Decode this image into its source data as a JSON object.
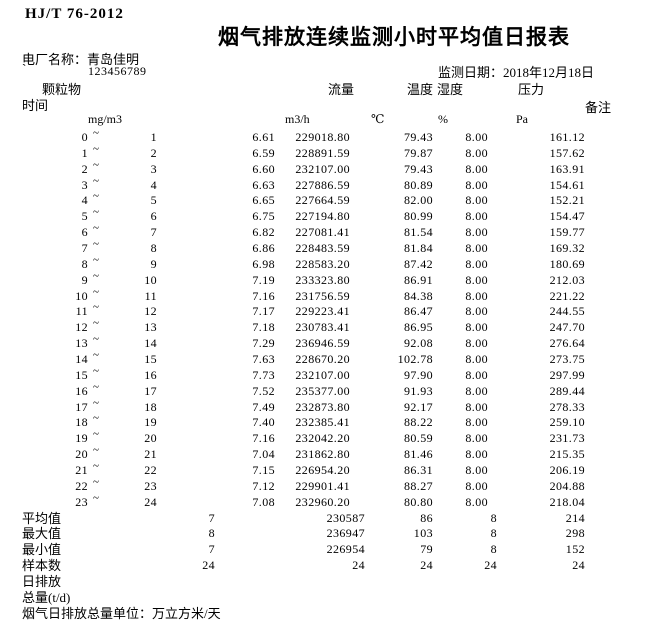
{
  "meta": {
    "standard_code": "HJ/T 76-2012",
    "title": "烟气排放连续监测小时平均值日报表",
    "plant_label": "电厂名称：",
    "plant_name": "青岛佳明",
    "tick_mark": "`",
    "plant_code": "123456789",
    "date_label": "监测日期：",
    "date_value": "2018年12月18日"
  },
  "columns": {
    "time": "时间",
    "pm": "颗粒物",
    "flow": "流量",
    "temperature": "温度",
    "humidity": "湿度",
    "pressure": "压力",
    "remark": "备注",
    "units": {
      "pm": "mg/m3",
      "flow": "m3/h",
      "temperature": "℃",
      "humidity": "%",
      "pressure": "Pa"
    }
  },
  "time_separator": "~",
  "rows": [
    {
      "from": "0",
      "to": "1",
      "pm": "6.61",
      "flow": "229018.80",
      "temp": "79.43",
      "hum": "8.00",
      "press": "161.12"
    },
    {
      "from": "1",
      "to": "2",
      "pm": "6.59",
      "flow": "228891.59",
      "temp": "79.87",
      "hum": "8.00",
      "press": "157.62"
    },
    {
      "from": "2",
      "to": "3",
      "pm": "6.60",
      "flow": "232107.00",
      "temp": "79.43",
      "hum": "8.00",
      "press": "163.91"
    },
    {
      "from": "3",
      "to": "4",
      "pm": "6.63",
      "flow": "227886.59",
      "temp": "80.89",
      "hum": "8.00",
      "press": "154.61"
    },
    {
      "from": "4",
      "to": "5",
      "pm": "6.65",
      "flow": "227664.59",
      "temp": "82.00",
      "hum": "8.00",
      "press": "152.21"
    },
    {
      "from": "5",
      "to": "6",
      "pm": "6.75",
      "flow": "227194.80",
      "temp": "80.99",
      "hum": "8.00",
      "press": "154.47"
    },
    {
      "from": "6",
      "to": "7",
      "pm": "6.82",
      "flow": "227081.41",
      "temp": "81.54",
      "hum": "8.00",
      "press": "159.77"
    },
    {
      "from": "7",
      "to": "8",
      "pm": "6.86",
      "flow": "228483.59",
      "temp": "81.84",
      "hum": "8.00",
      "press": "169.32"
    },
    {
      "from": "8",
      "to": "9",
      "pm": "6.98",
      "flow": "228583.20",
      "temp": "87.42",
      "hum": "8.00",
      "press": "180.69"
    },
    {
      "from": "9",
      "to": "10",
      "pm": "7.19",
      "flow": "233323.80",
      "temp": "86.91",
      "hum": "8.00",
      "press": "212.03"
    },
    {
      "from": "10",
      "to": "11",
      "pm": "7.16",
      "flow": "231756.59",
      "temp": "84.38",
      "hum": "8.00",
      "press": "221.22"
    },
    {
      "from": "11",
      "to": "12",
      "pm": "7.17",
      "flow": "229223.41",
      "temp": "86.47",
      "hum": "8.00",
      "press": "244.55"
    },
    {
      "from": "12",
      "to": "13",
      "pm": "7.18",
      "flow": "230783.41",
      "temp": "86.95",
      "hum": "8.00",
      "press": "247.70"
    },
    {
      "from": "13",
      "to": "14",
      "pm": "7.29",
      "flow": "236946.59",
      "temp": "92.08",
      "hum": "8.00",
      "press": "276.64"
    },
    {
      "from": "14",
      "to": "15",
      "pm": "7.63",
      "flow": "228670.20",
      "temp": "102.78",
      "hum": "8.00",
      "press": "273.75"
    },
    {
      "from": "15",
      "to": "16",
      "pm": "7.73",
      "flow": "232107.00",
      "temp": "97.90",
      "hum": "8.00",
      "press": "297.99"
    },
    {
      "from": "16",
      "to": "17",
      "pm": "7.52",
      "flow": "235377.00",
      "temp": "91.93",
      "hum": "8.00",
      "press": "289.44"
    },
    {
      "from": "17",
      "to": "18",
      "pm": "7.49",
      "flow": "232873.80",
      "temp": "92.17",
      "hum": "8.00",
      "press": "278.33"
    },
    {
      "from": "18",
      "to": "19",
      "pm": "7.40",
      "flow": "232385.41",
      "temp": "88.22",
      "hum": "8.00",
      "press": "259.10"
    },
    {
      "from": "19",
      "to": "20",
      "pm": "7.16",
      "flow": "232042.20",
      "temp": "80.59",
      "hum": "8.00",
      "press": "231.73"
    },
    {
      "from": "20",
      "to": "21",
      "pm": "7.04",
      "flow": "231862.80",
      "temp": "81.46",
      "hum": "8.00",
      "press": "215.35"
    },
    {
      "from": "21",
      "to": "22",
      "pm": "7.15",
      "flow": "226954.20",
      "temp": "86.31",
      "hum": "8.00",
      "press": "206.19"
    },
    {
      "from": "22",
      "to": "23",
      "pm": "7.12",
      "flow": "229901.41",
      "temp": "88.27",
      "hum": "8.00",
      "press": "204.88"
    },
    {
      "from": "23",
      "to": "24",
      "pm": "7.08",
      "flow": "232960.20",
      "temp": "80.80",
      "hum": "8.00",
      "press": "218.04"
    }
  ],
  "summary": [
    {
      "label": "平均值",
      "pm": "7",
      "flow": "230587",
      "temp": "86",
      "hum": "8",
      "press": "214"
    },
    {
      "label": "最大值",
      "pm": "8",
      "flow": "236947",
      "temp": "103",
      "hum": "8",
      "press": "298"
    },
    {
      "label": "最小值",
      "pm": "7",
      "flow": "226954",
      "temp": "79",
      "hum": "8",
      "press": "152"
    },
    {
      "label": "样本数",
      "pm": "24",
      "flow": "24",
      "temp": "24",
      "hum": "24",
      "press": "24"
    },
    {
      "label": "日排放",
      "pm": "",
      "flow": "",
      "temp": "",
      "hum": "",
      "press": ""
    },
    {
      "label": "总量(t/d)",
      "pm": "",
      "flow": "",
      "temp": "",
      "hum": "",
      "press": ""
    }
  ],
  "footer": {
    "unit_note": "烟气日排放总量单位：万立方米/天"
  }
}
